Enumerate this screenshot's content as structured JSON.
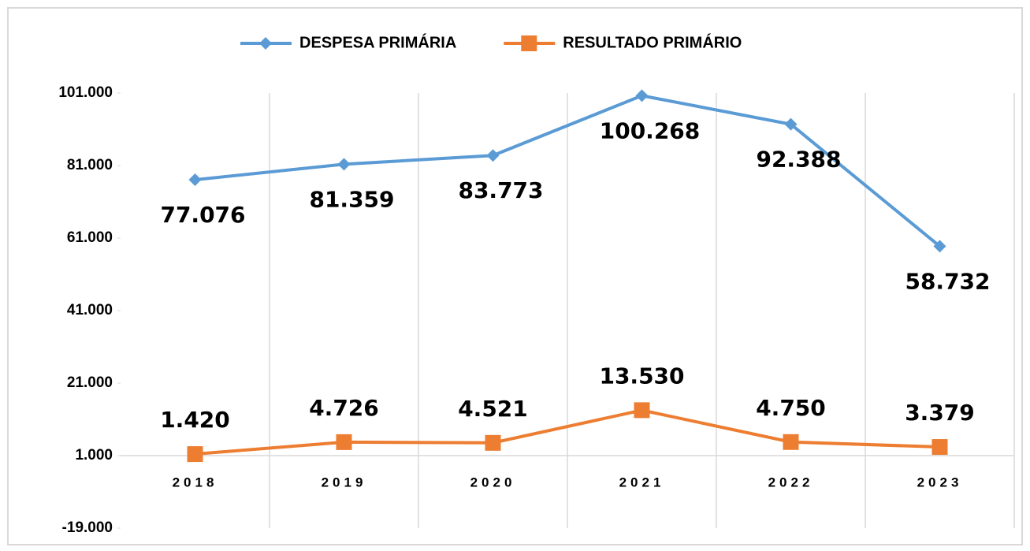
{
  "chart_data": {
    "type": "line",
    "categories": [
      "2018",
      "2019",
      "2020",
      "2021",
      "2022",
      "2023"
    ],
    "series": [
      {
        "name": "DESPESA PRIMÁRIA",
        "color": "#5b9bd5",
        "marker": "diamond",
        "values": [
          77076,
          81359,
          83773,
          100268,
          92388,
          58732
        ],
        "value_labels": [
          "77.076",
          "81.359",
          "83.773",
          "100.268",
          "92.388",
          "58.732"
        ]
      },
      {
        "name": "RESULTADO PRIMÁRIO",
        "color": "#ed7d31",
        "marker": "square",
        "values": [
          1420,
          4726,
          4521,
          13530,
          4750,
          3379
        ],
        "value_labels": [
          "1.420",
          "4.726",
          "4.521",
          "13.530",
          "4.750",
          "3.379"
        ]
      }
    ],
    "ylim": [
      -19000,
      101000
    ],
    "yticks": [
      {
        "value": -19000,
        "label": "-19.000"
      },
      {
        "value": 1000,
        "label": "1.000"
      },
      {
        "value": 21000,
        "label": "21.000"
      },
      {
        "value": 41000,
        "label": "41.000"
      },
      {
        "value": 61000,
        "label": "61.000"
      },
      {
        "value": 81000,
        "label": "81.000"
      },
      {
        "value": 101000,
        "label": "101.000"
      }
    ]
  }
}
